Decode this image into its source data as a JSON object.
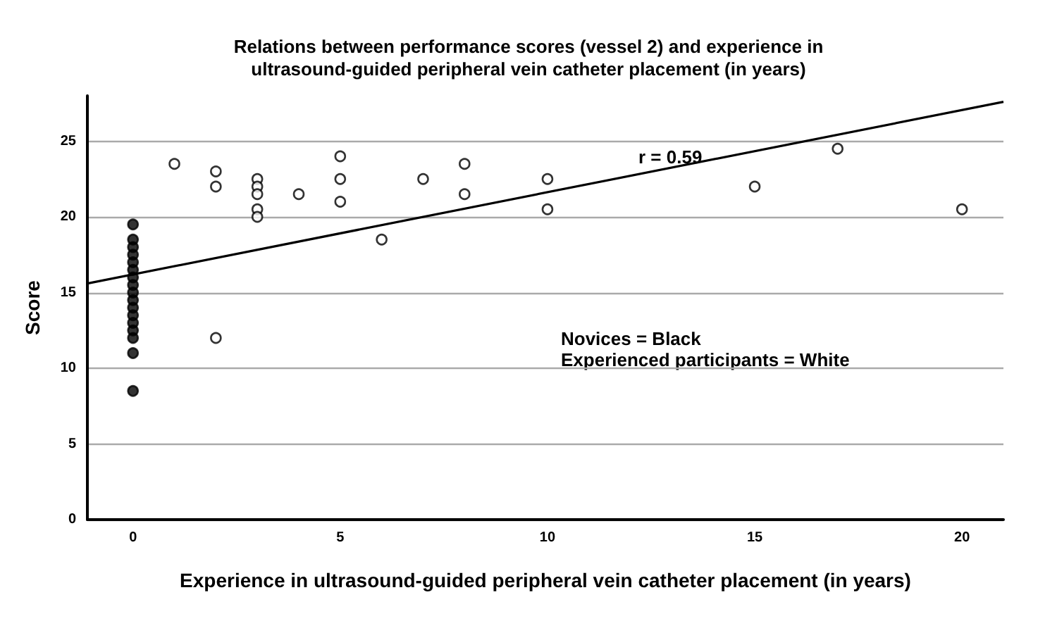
{
  "chart_data": {
    "type": "scatter",
    "title": "Relations between performance scores (vessel 2) and experience in\nultrasound-guided peripheral vein catheter placement (in years)",
    "xlabel": "Experience in ultrasound-guided peripheral vein catheter placement (in years)",
    "ylabel": "Score",
    "series": [
      {
        "marker": "circle",
        "color": "#000000",
        "x": [
          0,
          0,
          0,
          0,
          0,
          0,
          0,
          0,
          0,
          0,
          0,
          0,
          0,
          0,
          0,
          0,
          0
        ],
        "values": [
          19.5,
          18.5,
          18,
          17.5,
          17,
          16.5,
          16,
          15.5,
          15,
          14.5,
          14,
          13.5,
          13,
          12.5,
          12,
          11,
          8.5
        ]
      },
      {
        "marker": "circle",
        "color": "#ffffff",
        "x": [
          1,
          2,
          2,
          2,
          3,
          3,
          3,
          3,
          3,
          4,
          5,
          5,
          5,
          6,
          7,
          8,
          8,
          10,
          10,
          15,
          17,
          20
        ],
        "values": [
          23.5,
          23,
          22,
          12,
          22.5,
          22,
          21.5,
          20.5,
          20,
          21.5,
          24,
          22.5,
          21,
          18.5,
          22.5,
          23.5,
          21.5,
          22.5,
          20.5,
          22,
          24.5,
          20.5
        ]
      },
      {
        "type": "line",
        "marker": "none",
        "color": "#000000",
        "x": [
          -1.1,
          21
        ],
        "values": [
          15.6,
          27.6
        ]
      }
    ],
    "annotations": [
      "r = 0.59",
      "Novices = Black\nExperienced participants = White"
    ],
    "xlim": [
      -1.1,
      21
    ],
    "xticks": [
      0,
      5,
      10,
      15,
      20
    ],
    "ylim": [
      0,
      28
    ],
    "yticks": [
      0,
      5,
      10,
      15,
      20,
      25
    ],
    "grid": "y"
  }
}
